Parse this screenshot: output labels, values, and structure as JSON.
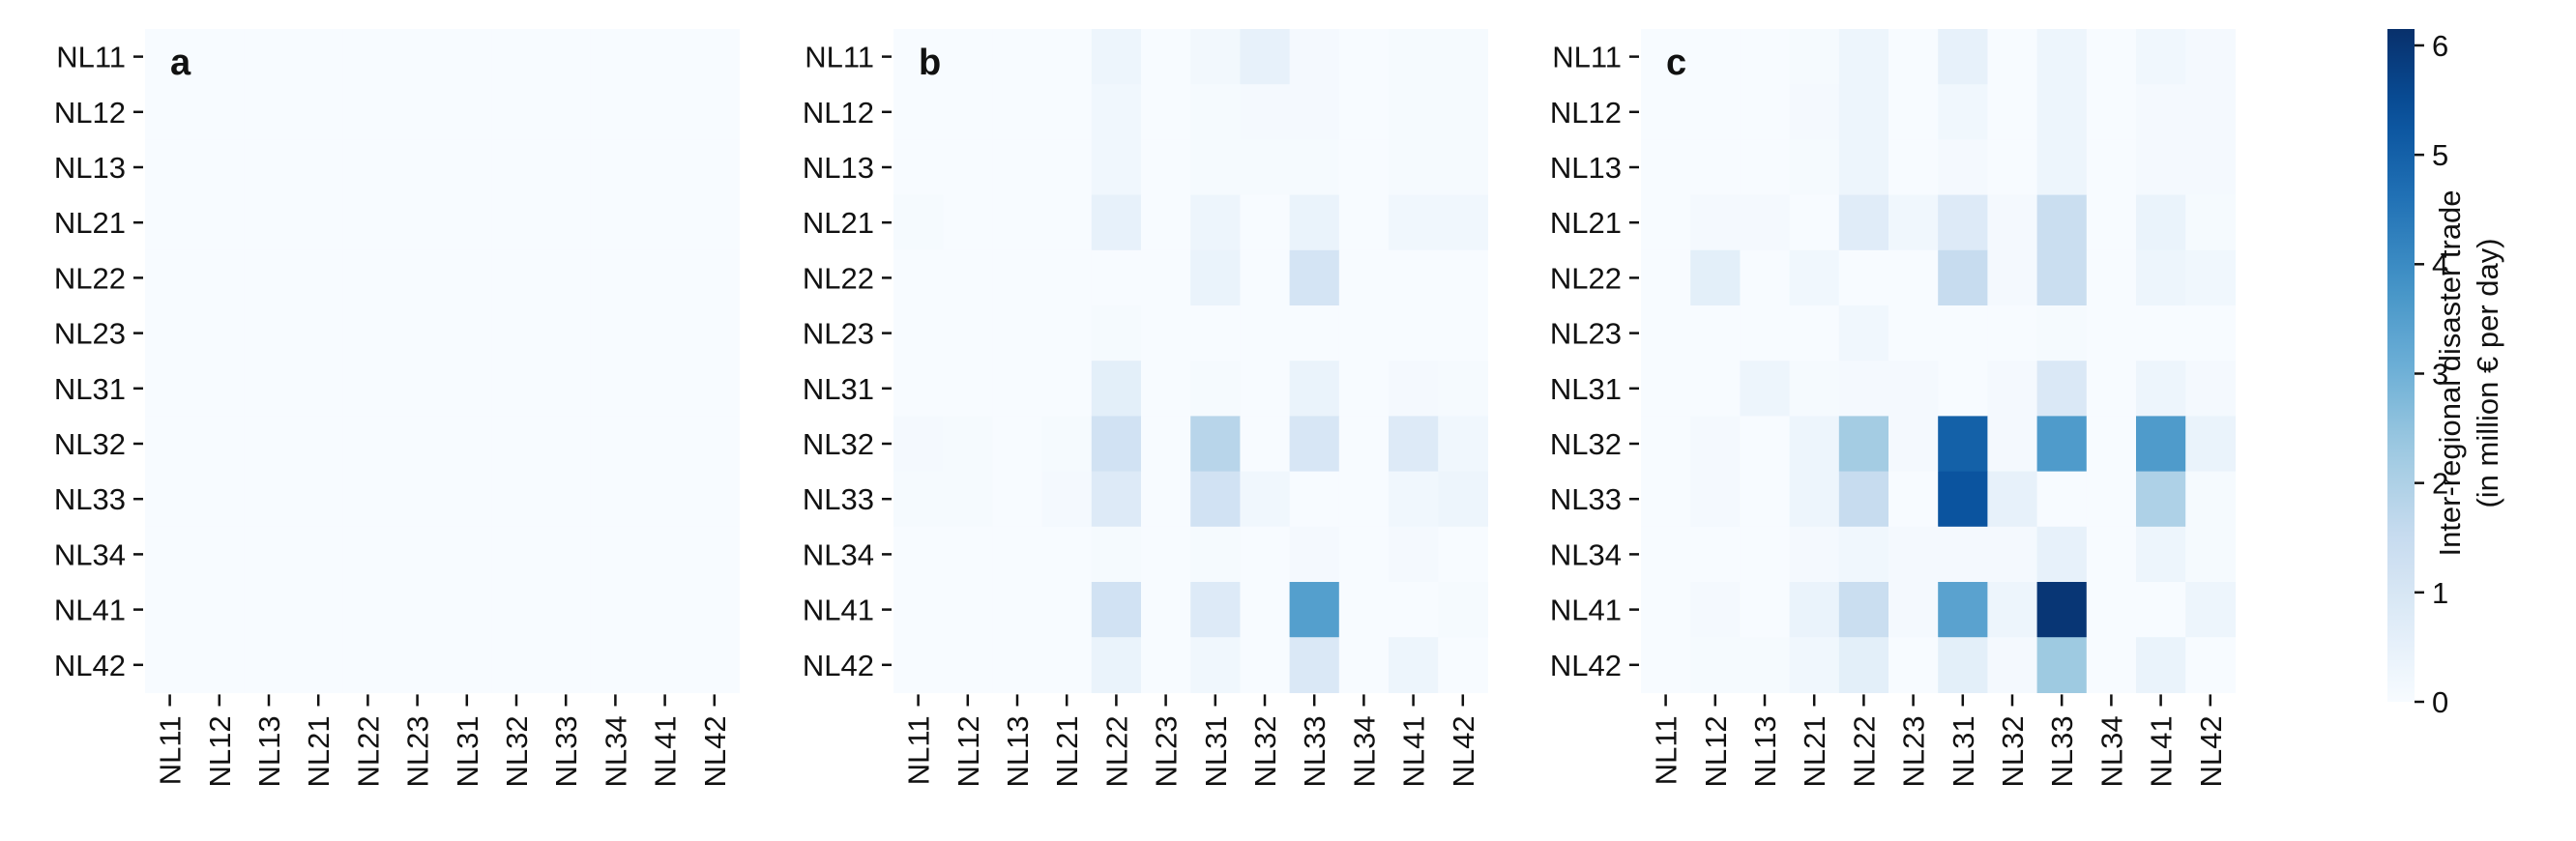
{
  "chart_data": {
    "type": "heatmap",
    "regions": [
      "NL11",
      "NL12",
      "NL13",
      "NL21",
      "NL22",
      "NL23",
      "NL31",
      "NL32",
      "NL33",
      "NL34",
      "NL41",
      "NL42"
    ],
    "panels": [
      {
        "letter": "a",
        "values": [
          [
            0,
            0,
            0,
            0,
            0,
            0,
            0,
            0,
            0,
            0,
            0,
            0
          ],
          [
            0,
            0,
            0,
            0,
            0,
            0,
            0,
            0,
            0,
            0,
            0,
            0
          ],
          [
            0,
            0,
            0,
            0,
            0,
            0,
            0,
            0,
            0,
            0,
            0,
            0
          ],
          [
            0,
            0,
            0,
            0,
            0,
            0,
            0,
            0,
            0,
            0,
            0,
            0
          ],
          [
            0,
            0,
            0,
            0,
            0,
            0,
            0,
            0,
            0,
            0,
            0,
            0
          ],
          [
            0,
            0,
            0,
            0,
            0,
            0,
            0,
            0,
            0,
            0,
            0,
            0
          ],
          [
            0,
            0,
            0,
            0,
            0,
            0,
            0,
            0,
            0,
            0,
            0,
            0
          ],
          [
            0,
            0,
            0,
            0,
            0,
            0,
            0,
            0,
            0,
            0,
            0,
            0
          ],
          [
            0,
            0,
            0,
            0,
            0,
            0,
            0,
            0,
            0,
            0,
            0,
            0
          ],
          [
            0,
            0,
            0,
            0,
            0,
            0,
            0,
            0,
            0,
            0,
            0,
            0
          ],
          [
            0,
            0,
            0,
            0,
            0,
            0,
            0,
            0,
            0,
            0,
            0,
            0
          ],
          [
            0,
            0,
            0,
            0,
            0,
            0,
            0,
            0,
            0,
            0,
            0,
            0
          ]
        ]
      },
      {
        "letter": "b",
        "values": [
          [
            0,
            0,
            0,
            0,
            0.3,
            0,
            0.15,
            0.5,
            0.1,
            0,
            0.05,
            0.05
          ],
          [
            0,
            0,
            0,
            0,
            0.2,
            0,
            0.05,
            0.1,
            0.1,
            0,
            0.05,
            0.05
          ],
          [
            0,
            0,
            0,
            0,
            0.2,
            0,
            0.05,
            0.05,
            0.05,
            0,
            0.05,
            0.05
          ],
          [
            0.05,
            0,
            0,
            0,
            0.5,
            0,
            0.3,
            0,
            0.4,
            0,
            0.2,
            0.2
          ],
          [
            0,
            0,
            0,
            0,
            0,
            0,
            0.4,
            0,
            1.1,
            0,
            0,
            0
          ],
          [
            0,
            0,
            0,
            0,
            0.05,
            0,
            0,
            0,
            0,
            0,
            0,
            0
          ],
          [
            0,
            0,
            0,
            0,
            0.6,
            0,
            0.05,
            0,
            0.4,
            0,
            0.1,
            0.05
          ],
          [
            0.1,
            0.05,
            0,
            0.05,
            1.2,
            0,
            1.8,
            0,
            1.0,
            0,
            0.8,
            0.2
          ],
          [
            0.05,
            0.05,
            0,
            0.1,
            0.8,
            0,
            1.2,
            0.2,
            0,
            0,
            0.2,
            0.3
          ],
          [
            0,
            0,
            0,
            0,
            0.05,
            0,
            0.05,
            0,
            0.1,
            0,
            0.1,
            0
          ],
          [
            0,
            0,
            0,
            0,
            1.2,
            0,
            0.8,
            0,
            3.5,
            0,
            0,
            0.05
          ],
          [
            0,
            0,
            0,
            0,
            0.4,
            0,
            0.2,
            0,
            0.9,
            0,
            0.3,
            0
          ]
        ]
      },
      {
        "letter": "c",
        "values": [
          [
            0,
            0,
            0,
            0.05,
            0.3,
            0,
            0.5,
            0,
            0.3,
            0,
            0.2,
            0.1
          ],
          [
            0,
            0,
            0,
            0.1,
            0.3,
            0,
            0.2,
            0,
            0.3,
            0,
            0.1,
            0.1
          ],
          [
            0,
            0,
            0,
            0.05,
            0.3,
            0,
            0.1,
            0,
            0.3,
            0,
            0.1,
            0.1
          ],
          [
            0,
            0.1,
            0.1,
            0,
            0.7,
            0.2,
            0.8,
            0.1,
            1.4,
            0,
            0.4,
            0.05
          ],
          [
            0,
            0.6,
            0,
            0.2,
            0,
            0,
            1.5,
            0.1,
            1.4,
            0,
            0.3,
            0.2
          ],
          [
            0,
            0,
            0,
            0,
            0.2,
            0,
            0,
            0,
            0.05,
            0,
            0,
            0
          ],
          [
            0,
            0,
            0.3,
            0.05,
            0.1,
            0.1,
            0,
            0.1,
            0.9,
            0,
            0.3,
            0.1
          ],
          [
            0,
            0.1,
            0,
            0.3,
            2.2,
            0.1,
            5.0,
            0.1,
            3.6,
            0,
            3.6,
            0.4
          ],
          [
            0,
            0.1,
            0,
            0.3,
            1.5,
            0,
            5.3,
            0.5,
            0,
            0,
            2.0,
            0.05
          ],
          [
            0,
            0,
            0,
            0.1,
            0.2,
            0.1,
            0.1,
            0.1,
            0.5,
            0,
            0.3,
            0.05
          ],
          [
            0,
            0.1,
            0,
            0.4,
            1.4,
            0.1,
            3.4,
            0.3,
            6.0,
            0,
            0,
            0.3
          ],
          [
            0,
            0.05,
            0.05,
            0.2,
            0.6,
            0,
            0.6,
            0.1,
            2.3,
            0,
            0.4,
            0
          ]
        ]
      }
    ],
    "colorbar": {
      "label_line1": "Inter-regional disaster trade",
      "label_line2": "(in million € per day)",
      "vmin": 0,
      "vmax": 6.15,
      "ticks": [
        "0",
        "1",
        "2",
        "3",
        "4",
        "5",
        "6"
      ],
      "colormap": "Blues"
    },
    "grid": false
  }
}
